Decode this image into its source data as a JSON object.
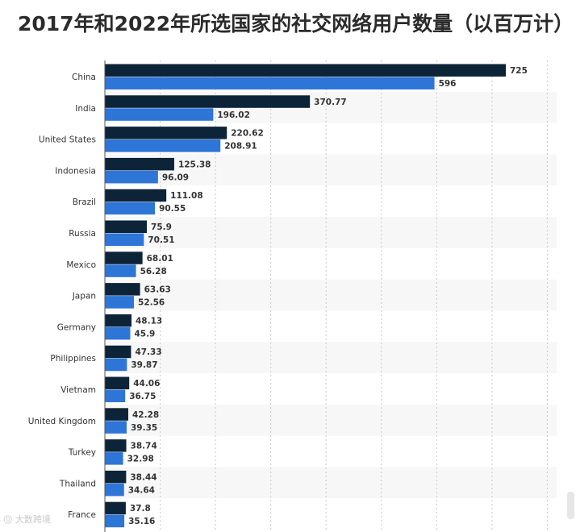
{
  "title": "2017年和2022年所选国家的社交网络用户数量（以百万计）",
  "watermark": "大数跨境",
  "colors": {
    "series_2022": "#0d2438",
    "series_2017": "#2e75d8",
    "stripe": "#f7f7f7",
    "grid": "#c9c9c9"
  },
  "chart_data": {
    "type": "bar",
    "orientation": "horizontal",
    "categories": [
      "China",
      "India",
      "United States",
      "Indonesia",
      "Brazil",
      "Russia",
      "Mexico",
      "Japan",
      "Germany",
      "Philippines",
      "Vietnam",
      "United Kingdom",
      "Turkey",
      "Thailand",
      "France"
    ],
    "series": [
      {
        "values": [
          725,
          370.77,
          220.62,
          125.38,
          111.08,
          75.9,
          68.01,
          63.63,
          48.13,
          47.33,
          44.06,
          42.28,
          38.74,
          38.44,
          37.8
        ]
      },
      {
        "values": [
          596,
          196.02,
          208.91,
          96.09,
          90.55,
          70.51,
          56.28,
          52.56,
          45.9,
          39.87,
          36.75,
          39.35,
          32.98,
          34.64,
          35.16
        ]
      }
    ],
    "value_labels": [
      [
        "725",
        "370.77",
        "220.62",
        "125.38",
        "111.08",
        "75.9",
        "68.01",
        "63.63",
        "48.13",
        "47.33",
        "44.06",
        "42.28",
        "38.74",
        "38.44",
        "37.8"
      ],
      [
        "596",
        "196.02",
        "208.91",
        "96.09",
        "90.55",
        "70.51",
        "56.28",
        "52.56",
        "45.9",
        "39.87",
        "36.75",
        "39.35",
        "32.98",
        "34.64",
        "35.16"
      ]
    ],
    "xlim": [
      0,
      800
    ],
    "grid": true,
    "legend": "none"
  }
}
